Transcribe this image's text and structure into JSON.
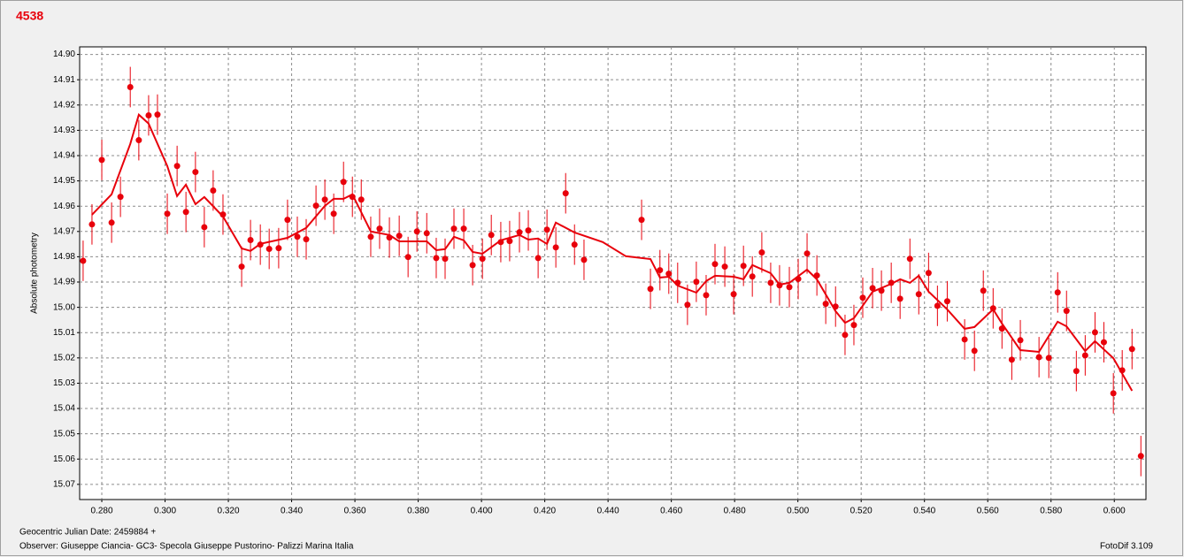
{
  "chart_data": {
    "type": "scatter",
    "title": "4538",
    "y_label": "Absolute photometry",
    "footer_left": [
      "Geocentric Julian Date: 2459884 +",
      "Observer: Giuseppe Ciancia- GC3- Specola Giuseppe Pustorino- Palizzi Marina Italia"
    ],
    "footer_right": "FotoDif 3.109",
    "color": "#e8000b",
    "grid": true,
    "y_inverted": true,
    "xlim": [
      0.273,
      0.61
    ],
    "ylim": [
      14.897,
      15.076
    ],
    "xticks": [
      {
        "value": 0.28,
        "label": "0.280"
      },
      {
        "value": 0.3,
        "label": "0.300"
      },
      {
        "value": 0.32,
        "label": "0.320"
      },
      {
        "value": 0.34,
        "label": "0.340"
      },
      {
        "value": 0.36,
        "label": "0.360"
      },
      {
        "value": 0.38,
        "label": "0.380"
      },
      {
        "value": 0.4,
        "label": "0.400"
      },
      {
        "value": 0.42,
        "label": "0.420"
      },
      {
        "value": 0.44,
        "label": "0.440"
      },
      {
        "value": 0.46,
        "label": "0.460"
      },
      {
        "value": 0.48,
        "label": "0.480"
      },
      {
        "value": 0.5,
        "label": "0.500"
      },
      {
        "value": 0.52,
        "label": "0.520"
      },
      {
        "value": 0.54,
        "label": "0.540"
      },
      {
        "value": 0.56,
        "label": "0.560"
      },
      {
        "value": 0.58,
        "label": "0.580"
      },
      {
        "value": 0.6,
        "label": "0.600"
      }
    ],
    "yticks": [
      {
        "value": 14.9,
        "label": "14.90"
      },
      14.91,
      14.92,
      14.93,
      14.94,
      14.95,
      14.96,
      14.97,
      14.98,
      14.99,
      {
        "value": 15.0,
        "label": "15.00"
      },
      15.01,
      15.02,
      15.03,
      15.04,
      15.05,
      15.06,
      15.07
    ],
    "error": 0.008,
    "x": [
      0.2741,
      0.2769,
      0.28,
      0.2831,
      0.2859,
      0.289,
      0.2917,
      0.2948,
      0.2976,
      0.3007,
      0.3038,
      0.3066,
      0.3096,
      0.3124,
      0.3152,
      0.3183,
      0.3242,
      0.327,
      0.3301,
      0.3329,
      0.3359,
      0.3387,
      0.3418,
      0.3446,
      0.3477,
      0.3505,
      0.3533,
      0.3564,
      0.3592,
      0.362,
      0.365,
      0.3678,
      0.3709,
      0.374,
      0.3768,
      0.3796,
      0.3827,
      0.3857,
      0.3885,
      0.3913,
      0.3944,
      0.3972,
      0.4003,
      0.4031,
      0.4061,
      0.4089,
      0.412,
      0.4148,
      0.4179,
      0.4207,
      0.4235,
      0.4266,
      0.4294,
      0.4324,
      0.4506,
      0.4534,
      0.4564,
      0.4592,
      0.462,
      0.4651,
      0.4679,
      0.471,
      0.4738,
      0.4769,
      0.4797,
      0.4828,
      0.4856,
      0.4886,
      0.4914,
      0.4942,
      0.4973,
      0.5001,
      0.5029,
      0.506,
      0.5088,
      0.5119,
      0.5149,
      0.5177,
      0.5205,
      0.5236,
      0.5264,
      0.5295,
      0.5323,
      0.5354,
      0.5382,
      0.5413,
      0.5441,
      0.5472,
      0.5527,
      0.5558,
      0.5586,
      0.5617,
      0.5645,
      0.5676,
      0.5703,
      0.5762,
      0.5793,
      0.5821,
      0.5849,
      0.588,
      0.5908,
      0.5939,
      0.5967,
      0.5997,
      0.6025,
      0.6056,
      0.6084
    ],
    "values": [
      14.9816,
      14.9672,
      14.9417,
      14.9665,
      14.9563,
      14.9129,
      14.9339,
      14.9241,
      14.9238,
      14.963,
      14.9441,
      14.9623,
      14.9465,
      14.9683,
      14.9538,
      14.9633,
      14.9839,
      14.9734,
      14.9752,
      14.9769,
      14.9766,
      14.9654,
      14.9721,
      14.9731,
      14.9598,
      14.9574,
      14.963,
      14.9504,
      14.9563,
      14.9574,
      14.9721,
      14.9689,
      14.9724,
      14.9717,
      14.9801,
      14.97,
      14.9707,
      14.9805,
      14.9808,
      14.9689,
      14.9689,
      14.9833,
      14.9808,
      14.9714,
      14.9742,
      14.9738,
      14.9703,
      14.9696,
      14.9805,
      14.9693,
      14.9763,
      14.9549,
      14.9752,
      14.9812,
      14.9654,
      14.9927,
      14.9853,
      14.9867,
      14.9903,
      14.999,
      14.9899,
      14.9952,
      14.9829,
      14.9839,
      14.9948,
      14.9836,
      14.9878,
      14.9783,
      14.9903,
      14.9913,
      14.992,
      14.9888,
      14.9787,
      14.9874,
      14.9986,
      14.9997,
      15.0109,
      15.007,
      14.9962,
      14.9924,
      14.9934,
      14.9903,
      14.9966,
      14.9808,
      14.9948,
      14.9864,
      14.9994,
      14.9976,
      15.0127,
      15.0172,
      14.9934,
      15.0004,
      15.0084,
      15.0207,
      15.013,
      15.0197,
      15.02,
      14.9941,
      15.0014,
      15.0252,
      15.019,
      15.0099,
      15.0138,
      15.034,
      15.0249,
      15.0165,
      15.0588
    ],
    "line": {
      "x": [
        0.2769,
        0.2831,
        0.289,
        0.2917,
        0.2948,
        0.3007,
        0.3038,
        0.3066,
        0.3096,
        0.3124,
        0.3183,
        0.3242,
        0.327,
        0.3301,
        0.3387,
        0.3446,
        0.3505,
        0.3533,
        0.3564,
        0.3592,
        0.365,
        0.3709,
        0.374,
        0.3827,
        0.3857,
        0.3885,
        0.3913,
        0.3944,
        0.3972,
        0.4003,
        0.4061,
        0.412,
        0.4148,
        0.4179,
        0.4207,
        0.4235,
        0.4294,
        0.4383,
        0.4456,
        0.4534,
        0.4564,
        0.4592,
        0.462,
        0.4679,
        0.471,
        0.4738,
        0.4797,
        0.4828,
        0.4856,
        0.4914,
        0.4942,
        0.4973,
        0.5029,
        0.506,
        0.5119,
        0.5149,
        0.5177,
        0.5236,
        0.5295,
        0.5323,
        0.5354,
        0.5382,
        0.5413,
        0.5472,
        0.5527,
        0.5558,
        0.5617,
        0.5645,
        0.5703,
        0.5762,
        0.5821,
        0.5849,
        0.5908,
        0.5939,
        0.5997,
        0.6056
      ],
      "values": [
        14.9634,
        14.9553,
        14.9354,
        14.9238,
        14.9273,
        14.9441,
        14.956,
        14.9515,
        14.9592,
        14.9564,
        14.9641,
        14.9767,
        14.9777,
        14.9749,
        14.9725,
        14.9686,
        14.9599,
        14.9571,
        14.9571,
        14.9553,
        14.97,
        14.9714,
        14.9739,
        14.9739,
        14.9774,
        14.977,
        14.9721,
        14.9735,
        14.9781,
        14.9788,
        14.9735,
        14.9714,
        14.9732,
        14.9728,
        14.9749,
        14.9665,
        14.9704,
        14.9742,
        14.9798,
        14.9809,
        14.9882,
        14.9879,
        14.9914,
        14.9942,
        14.9896,
        14.9875,
        14.9879,
        14.9889,
        14.9833,
        14.9865,
        14.991,
        14.9903,
        14.9851,
        14.9889,
        15.0015,
        15.0061,
        15.0043,
        14.9938,
        14.9907,
        14.9889,
        14.9903,
        14.9875,
        14.9938,
        15.0008,
        15.0085,
        15.0078,
        15.0008,
        15.0064,
        15.0169,
        15.0176,
        15.0057,
        15.0075,
        15.0173,
        15.0134,
        15.0201,
        15.033
      ]
    }
  }
}
